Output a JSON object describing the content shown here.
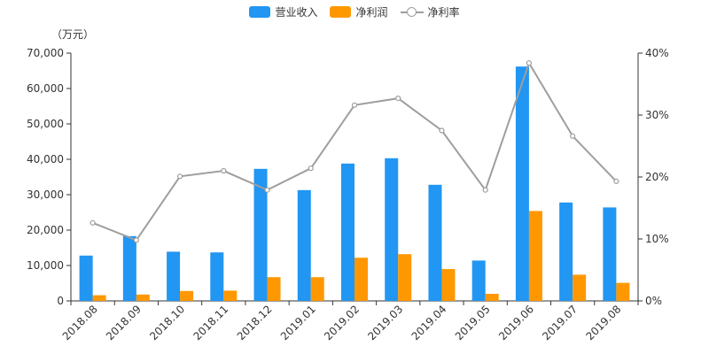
{
  "legend": {
    "revenue": "营业收入",
    "profit": "净利润",
    "margin": "净利率"
  },
  "unit_label": "（万元）",
  "colors": {
    "revenue": "#2196f3",
    "profit": "#ff9800",
    "margin": "#9e9e9e"
  },
  "chart_data": {
    "type": "bar",
    "categories": [
      "2018.08",
      "2018.09",
      "2018.10",
      "2018.11",
      "2018.12",
      "2019.01",
      "2019.02",
      "2019.03",
      "2019.04",
      "2019.05",
      "2019.06",
      "2019.07",
      "2019.08"
    ],
    "series": [
      {
        "name": "营业收入",
        "type": "bar",
        "axis": "left",
        "values": [
          12800,
          18300,
          13900,
          13700,
          37300,
          31300,
          38800,
          40300,
          32800,
          11400,
          66200,
          27800,
          26400
        ]
      },
      {
        "name": "净利润",
        "type": "bar",
        "axis": "left",
        "values": [
          1600,
          1800,
          2800,
          2900,
          6700,
          6700,
          12200,
          13200,
          9000,
          2000,
          25400,
          7400,
          5100
        ]
      },
      {
        "name": "净利率",
        "type": "line",
        "axis": "right",
        "values": [
          12.6,
          9.8,
          20.1,
          21.0,
          17.9,
          21.4,
          31.6,
          32.7,
          27.5,
          17.9,
          38.4,
          26.6,
          19.3
        ]
      }
    ],
    "y_left": {
      "min": 0,
      "max": 70000,
      "ticks": [
        "0",
        "10,000",
        "20,000",
        "30,000",
        "40,000",
        "50,000",
        "60,000",
        "70,000"
      ]
    },
    "y_right": {
      "min": 0,
      "max": 40,
      "ticks": [
        "0%",
        "10%",
        "20%",
        "30%",
        "40%"
      ]
    },
    "grid": false,
    "legend_position": "top-center"
  }
}
